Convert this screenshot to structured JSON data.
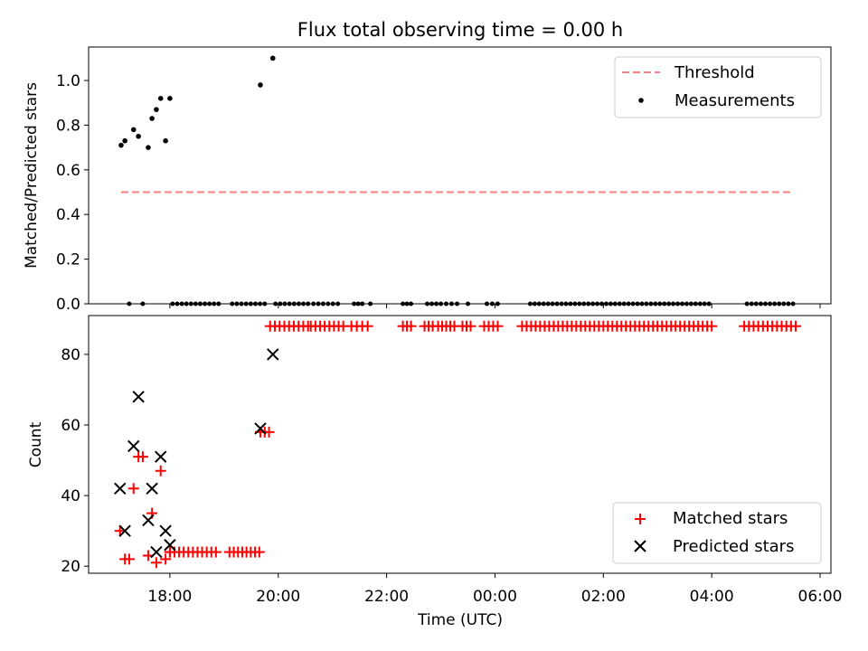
{
  "chart_data": [
    {
      "type": "scatter",
      "title": "Flux total observing time = 0.00 h",
      "ylabel": "Matched/Predicted stars",
      "xlabel": "",
      "x_unit": "hours after 00:00 UTC of the first night",
      "xlim": [
        16.5,
        30.2
      ],
      "ylim": [
        0,
        1.15
      ],
      "yticks": [
        "0.0",
        "0.2",
        "0.4",
        "0.6",
        "0.8",
        "1.0"
      ],
      "legend_position": "upper right",
      "threshold": {
        "name": "Threshold",
        "value": 0.5,
        "x": [
          17.1,
          29.5
        ],
        "color": "#ff7f7f",
        "style": "dashed"
      },
      "series": [
        {
          "name": "Measurements",
          "color": "#000000",
          "x": [
            17.1,
            17.17,
            17.33,
            17.42,
            17.6,
            17.67,
            17.75,
            17.83,
            17.92,
            18.0,
            19.67,
            19.9
          ],
          "y": [
            0.71,
            0.73,
            0.78,
            0.75,
            0.7,
            0.83,
            0.87,
            0.92,
            0.73,
            0.92,
            0.98,
            1.1
          ]
        }
      ],
      "zero_values_x_ranges": [
        [
          17.25,
          17.25
        ],
        [
          17.5,
          17.5
        ],
        [
          18.05,
          18.9
        ],
        [
          19.15,
          19.75
        ],
        [
          19.95,
          20.55
        ],
        [
          20.65,
          21.1
        ],
        [
          21.4,
          21.55
        ],
        [
          21.7,
          21.7
        ],
        [
          22.3,
          22.45
        ],
        [
          22.75,
          23.0
        ],
        [
          23.1,
          23.3
        ],
        [
          23.5,
          23.5
        ],
        [
          23.85,
          24.05
        ],
        [
          24.65,
          27.95
        ],
        [
          28.65,
          29.5
        ]
      ]
    },
    {
      "type": "scatter",
      "title": "",
      "ylabel": "Count",
      "xlabel": "Time (UTC)",
      "x_unit": "hours after 00:00 UTC of the first night",
      "xlim": [
        16.5,
        30.2
      ],
      "ylim": [
        18,
        91
      ],
      "yticks": [
        "20",
        "40",
        "60",
        "80"
      ],
      "xticks": [
        "18:00",
        "20:00",
        "22:00",
        "00:00",
        "02:00",
        "04:00",
        "06:00"
      ],
      "xtick_values": [
        18,
        20,
        22,
        24,
        26,
        28,
        30
      ],
      "legend_position": "lower right",
      "series": [
        {
          "name": "Matched stars",
          "color": "#ff0000",
          "marker": "+",
          "x": [
            17.08,
            17.17,
            17.25,
            17.33,
            17.42,
            17.5,
            17.6,
            17.67,
            17.75,
            17.83,
            17.92,
            18.0,
            19.67,
            19.75,
            19.83
          ],
          "y": [
            30,
            22,
            22,
            42,
            51,
            51,
            23,
            35,
            21,
            47,
            22,
            24,
            58,
            58,
            58
          ]
        },
        {
          "name": "Predicted stars",
          "color": "#000000",
          "marker": "x",
          "x": [
            17.08,
            17.17,
            17.33,
            17.42,
            17.6,
            17.67,
            17.75,
            17.83,
            17.92,
            18.0,
            19.67,
            19.9
          ],
          "y": [
            42,
            30,
            54,
            68,
            33,
            42,
            24,
            51,
            30,
            26,
            59,
            80
          ]
        }
      ],
      "matched_low_band": {
        "value": 24,
        "x_ranges": [
          [
            18.0,
            18.85
          ],
          [
            19.1,
            19.65
          ]
        ]
      },
      "matched_high_band": {
        "value": 88,
        "x_ranges": [
          [
            19.85,
            20.55
          ],
          [
            20.6,
            21.2
          ],
          [
            21.35,
            21.55
          ],
          [
            21.65,
            21.65
          ],
          [
            22.3,
            22.45
          ],
          [
            22.7,
            22.85
          ],
          [
            22.95,
            23.25
          ],
          [
            23.4,
            23.55
          ],
          [
            23.8,
            24.05
          ],
          [
            24.5,
            28.0
          ],
          [
            28.6,
            29.55
          ]
        ]
      }
    }
  ]
}
